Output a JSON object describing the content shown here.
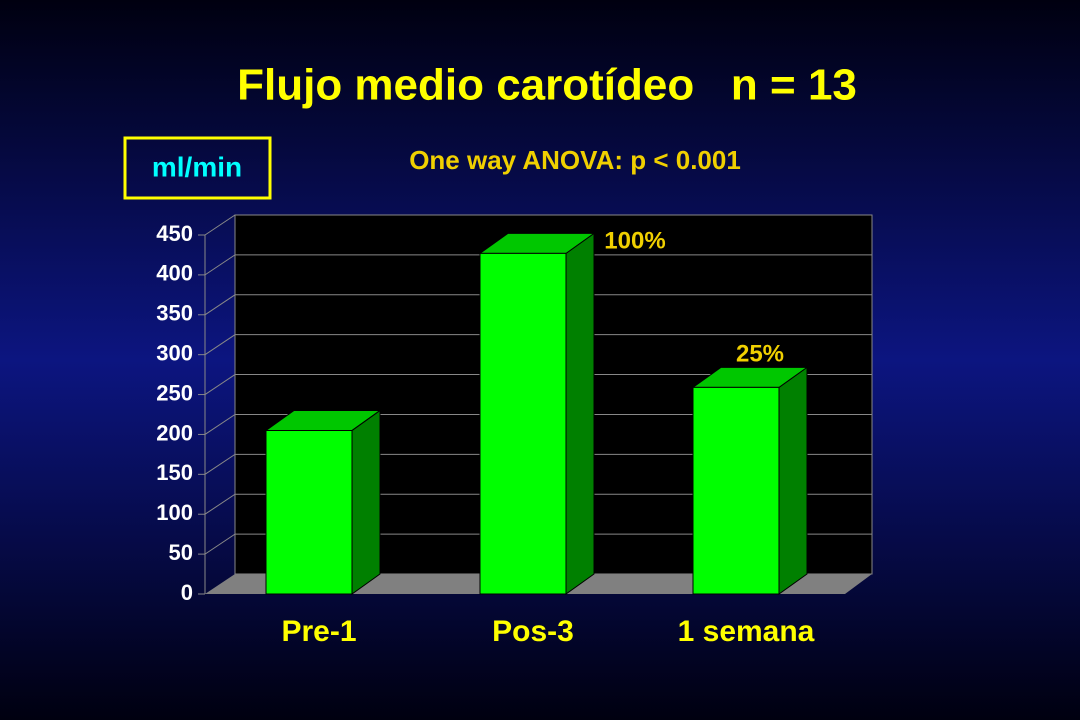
{
  "chart_data": {
    "type": "bar3d",
    "title": "Flujo medio carotídeo   n = 13",
    "subtitle": "One way ANOVA: p < 0.001",
    "y_label": "ml/min",
    "categories": [
      "Pre-1",
      "Pos-3",
      "1 semana"
    ],
    "values": [
      205,
      427,
      259
    ],
    "color": "#00ff00",
    "annotations": [
      "100%",
      "25%"
    ],
    "ylim": [
      0,
      450
    ],
    "yticks": [
      0,
      50,
      100,
      150,
      200,
      250,
      300,
      350,
      400,
      450
    ],
    "grid": true
  }
}
